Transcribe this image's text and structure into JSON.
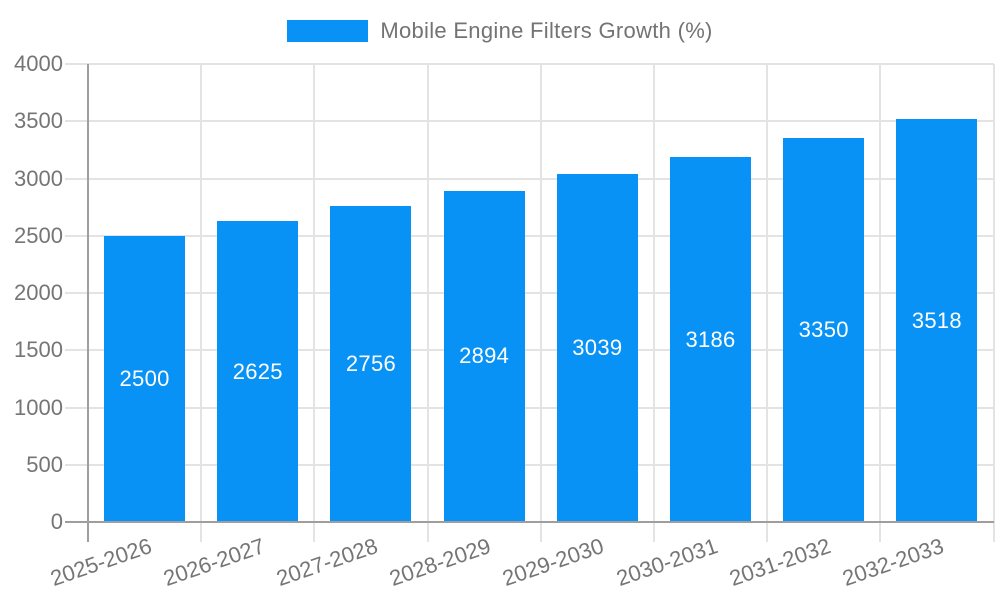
{
  "chart_data": {
    "type": "bar",
    "title": "Mobile Engine Filters Growth (%)",
    "categories": [
      "2025-2026",
      "2026-2027",
      "2027-2028",
      "2028-2029",
      "2029-2030",
      "2030-2031",
      "2031-2032",
      "2032-2033"
    ],
    "values": [
      2500,
      2625,
      2756,
      2894,
      3039,
      3186,
      3350,
      3518
    ],
    "xlabel": "",
    "ylabel": "",
    "ylim": [
      0,
      4000
    ],
    "ytick_step": 500,
    "grid": true,
    "legend_position": "top-center",
    "bar_label_position": "inside-middle",
    "colors": {
      "bar": "#0892f5",
      "grid": "#e3e3e3",
      "axis": "#9e9e9e",
      "tick_text": "#757575",
      "bar_label_text": "#ffffff",
      "legend_text": "#737373"
    }
  }
}
